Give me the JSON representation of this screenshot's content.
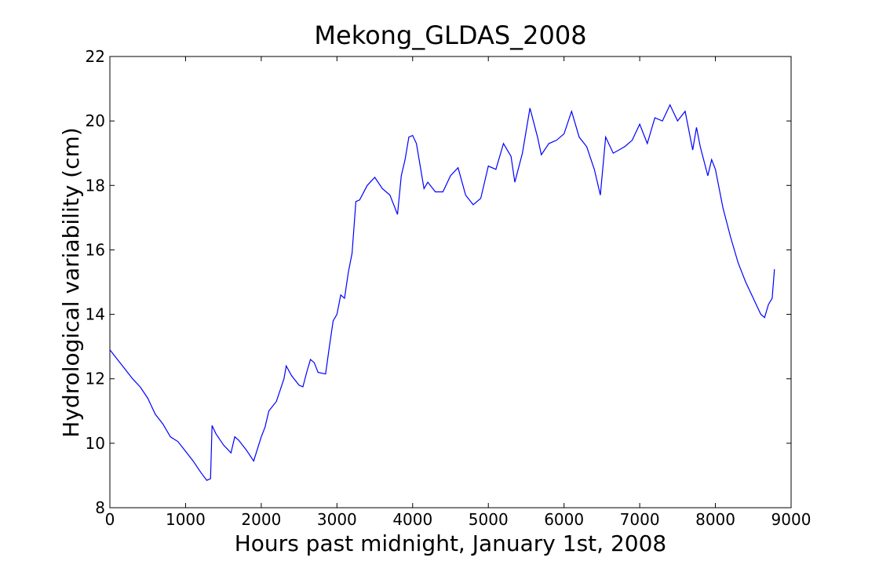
{
  "chart_data": {
    "type": "line",
    "title": "Mekong_GLDAS_2008",
    "x_label": "Hours past midnight, January 1st, 2008",
    "y_label": "Hydrological variability (cm)",
    "x": [
      0,
      100,
      200,
      300,
      400,
      500,
      600,
      700,
      800,
      900,
      1000,
      1100,
      1200,
      1280,
      1330,
      1350,
      1400,
      1500,
      1600,
      1650,
      1700,
      1800,
      1900,
      2000,
      2050,
      2100,
      2200,
      2300,
      2330,
      2400,
      2500,
      2550,
      2600,
      2650,
      2700,
      2750,
      2850,
      2900,
      2950,
      3000,
      3050,
      3100,
      3150,
      3200,
      3250,
      3300,
      3400,
      3500,
      3600,
      3700,
      3800,
      3850,
      3900,
      3950,
      4000,
      4050,
      4100,
      4150,
      4200,
      4300,
      4400,
      4500,
      4600,
      4700,
      4800,
      4900,
      5000,
      5100,
      5200,
      5300,
      5350,
      5450,
      5550,
      5650,
      5700,
      5800,
      5900,
      6000,
      6100,
      6200,
      6300,
      6400,
      6480,
      6550,
      6650,
      6800,
      6900,
      7000,
      7100,
      7200,
      7300,
      7400,
      7500,
      7600,
      7700,
      7750,
      7800,
      7900,
      7950,
      8000,
      8100,
      8200,
      8300,
      8400,
      8500,
      8600,
      8650,
      8700,
      8750,
      8780
    ],
    "series": [
      {
        "name": "Mekong_GLDAS_2008",
        "color": "#0000ff",
        "values": [
          12.9,
          12.6,
          12.3,
          12.0,
          11.75,
          11.4,
          10.9,
          10.6,
          10.2,
          10.05,
          9.75,
          9.45,
          9.1,
          8.85,
          8.9,
          10.55,
          10.3,
          9.95,
          9.7,
          10.2,
          10.1,
          9.8,
          9.45,
          10.2,
          10.5,
          11.0,
          11.3,
          12.0,
          12.4,
          12.1,
          11.8,
          11.75,
          12.2,
          12.6,
          12.5,
          12.2,
          12.15,
          13.0,
          13.8,
          14.0,
          14.6,
          14.5,
          15.3,
          15.9,
          17.5,
          17.55,
          18.0,
          18.25,
          17.9,
          17.7,
          17.1,
          18.3,
          18.8,
          19.5,
          19.55,
          19.3,
          18.6,
          17.9,
          18.1,
          17.8,
          17.8,
          18.3,
          18.55,
          17.7,
          17.4,
          17.6,
          18.6,
          18.5,
          19.3,
          18.9,
          18.1,
          19.0,
          20.4,
          19.5,
          18.95,
          19.3,
          19.4,
          19.6,
          20.3,
          19.5,
          19.2,
          18.5,
          17.7,
          19.5,
          19.0,
          19.2,
          19.4,
          19.9,
          19.3,
          20.1,
          20.0,
          20.5,
          20.0,
          20.3,
          19.1,
          19.8,
          19.2,
          18.3,
          18.8,
          18.5,
          17.3,
          16.4,
          15.6,
          15.0,
          14.5,
          14.0,
          13.9,
          14.3,
          14.5,
          15.4
        ]
      }
    ],
    "xlim": [
      0,
      9000
    ],
    "xticks": [
      0,
      1000,
      2000,
      3000,
      4000,
      5000,
      6000,
      7000,
      8000,
      9000
    ],
    "ylim": [
      8,
      22
    ],
    "yticks": [
      8,
      10,
      12,
      14,
      16,
      18,
      20,
      22
    ],
    "grid": false
  }
}
